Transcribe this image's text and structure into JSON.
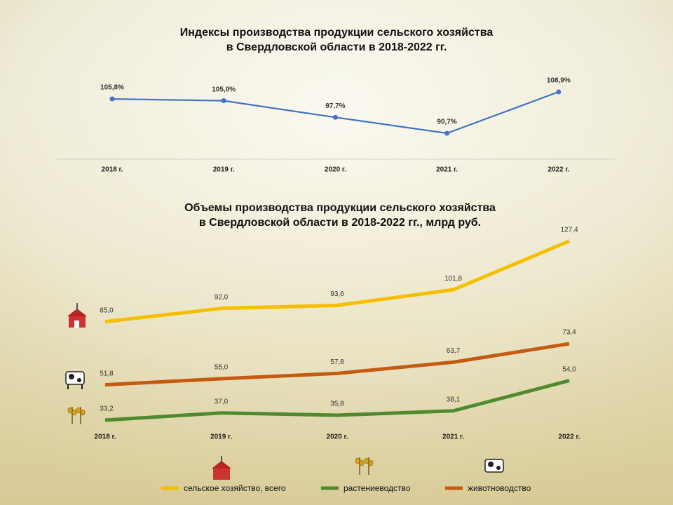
{
  "chart_data": [
    {
      "type": "line",
      "title": [
        "Индексы производства продукции сельского хозяйства",
        "в Свердловской области в 2018-2022 гг."
      ],
      "categories": [
        "2018 г.",
        "2019 г.",
        "2020 г.",
        "2021 г.",
        "2022 г."
      ],
      "values": [
        105.8,
        105.0,
        97.7,
        90.7,
        108.9
      ],
      "value_labels": [
        "105,8%",
        "105,0%",
        "97,7%",
        "90,7%",
        "108,9%"
      ],
      "color": "#4472c4"
    },
    {
      "type": "line",
      "title": [
        "Объемы производства продукции сельского хозяйства",
        "в Свердловской области в 2018-2022 гг., млрд руб."
      ],
      "categories": [
        "2018 г.",
        "2019 г.",
        "2020 г.",
        "2021 г.",
        "2022 г."
      ],
      "series": [
        {
          "name": "сельское хозяйство, всего",
          "color": "#f5bf00",
          "values": [
            85.0,
            92.0,
            93.6,
            101.8,
            127.4
          ],
          "value_labels": [
            "85,0",
            "92,0",
            "93,6",
            "101,8",
            "127,4"
          ]
        },
        {
          "name": "растениеводство",
          "color": "#4f8a2f",
          "values": [
            33.2,
            37.0,
            35.8,
            38.1,
            54.0
          ],
          "value_labels": [
            "33,2",
            "37,0",
            "35,8",
            "38,1",
            "54,0"
          ]
        },
        {
          "name": "животноводство",
          "color": "#c55a11",
          "values": [
            51.8,
            55.0,
            57.8,
            63.7,
            73.4
          ],
          "value_labels": [
            "51,8",
            "55,0",
            "57,8",
            "63,7",
            "73,4"
          ]
        }
      ],
      "legend": "bottom"
    }
  ]
}
